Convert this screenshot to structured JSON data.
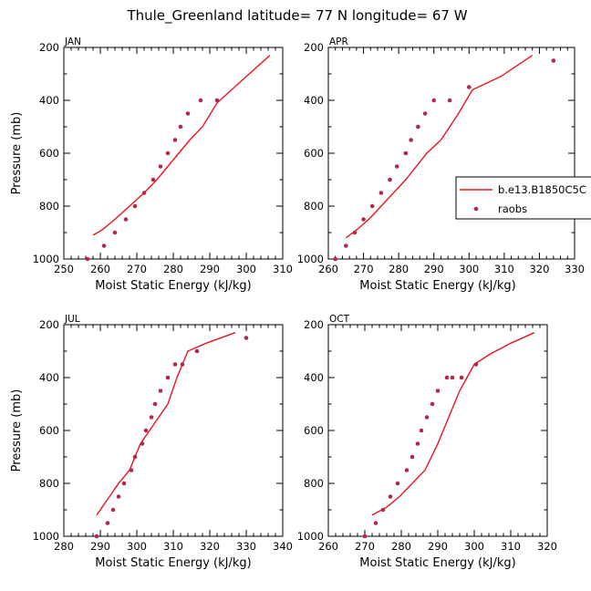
{
  "title": "Thule_Greenland   latitude= 77 N longitude= 67 W",
  "colors": {
    "model": "#e8141e",
    "obs": "#b02a4a",
    "axis": "#000000"
  },
  "legend": {
    "placement": "right",
    "items": [
      "b.e13.B1850C5C",
      "raobs"
    ]
  },
  "chart_data": [
    {
      "type": "line",
      "panel": "JAN",
      "xlabel": "Moist Static Energy (kJ/kg)",
      "ylabel": "Pressure (mb)",
      "xlim": [
        250,
        310
      ],
      "ylim": [
        1000,
        200
      ],
      "reversed_y": true,
      "xticks": [
        250,
        260,
        270,
        280,
        290,
        300,
        310
      ],
      "yticks": [
        200,
        400,
        600,
        800,
        1000
      ],
      "series": [
        {
          "name": "b.e13.B1850C5C",
          "kind": "line",
          "x": [
            258,
            260.5,
            264,
            268,
            272,
            275.5,
            278.5,
            281.5,
            284.5,
            288,
            292,
            296,
            300,
            306.5
          ],
          "y": [
            910,
            890,
            850,
            800,
            750,
            700,
            650,
            600,
            550,
            500,
            410,
            360,
            310,
            230
          ]
        },
        {
          "name": "raobs",
          "kind": "scatter",
          "x": [
            256.5,
            261,
            264,
            267,
            269.5,
            272,
            274.5,
            276.5,
            278.5,
            280.5,
            282,
            284,
            287.5,
            292
          ],
          "y": [
            1000,
            950,
            900,
            850,
            800,
            750,
            700,
            650,
            600,
            550,
            500,
            450,
            400,
            400
          ]
        }
      ]
    },
    {
      "type": "line",
      "panel": "APR",
      "xlabel": "Moist Static Energy (kJ/kg)",
      "ylabel": "",
      "xlim": [
        260,
        330
      ],
      "ylim": [
        1000,
        200
      ],
      "reversed_y": true,
      "xticks": [
        260,
        270,
        280,
        290,
        300,
        310,
        320,
        330
      ],
      "yticks": [
        200,
        400,
        600,
        800,
        1000
      ],
      "series": [
        {
          "name": "b.e13.B1850C5C",
          "kind": "line",
          "x": [
            265,
            268,
            271.5,
            275,
            278.5,
            282,
            285,
            288,
            292,
            297,
            301,
            309,
            318
          ],
          "y": [
            920,
            890,
            850,
            800,
            750,
            700,
            650,
            600,
            550,
            450,
            360,
            310,
            230
          ]
        },
        {
          "name": "raobs",
          "kind": "scatter",
          "x": [
            262,
            265,
            267.5,
            270,
            272.5,
            275,
            277.5,
            279.5,
            282,
            283.5,
            285.5,
            287.5,
            290,
            294.5,
            300,
            324
          ],
          "y": [
            1000,
            950,
            900,
            850,
            800,
            750,
            700,
            650,
            600,
            550,
            500,
            450,
            400,
            400,
            350,
            250
          ]
        }
      ]
    },
    {
      "type": "line",
      "panel": "JUL",
      "xlabel": "Moist Static Energy (kJ/kg)",
      "ylabel": "Pressure (mb)",
      "xlim": [
        280,
        340
      ],
      "ylim": [
        1000,
        200
      ],
      "reversed_y": true,
      "xticks": [
        280,
        290,
        300,
        310,
        320,
        330,
        340
      ],
      "yticks": [
        200,
        400,
        600,
        800,
        1000
      ],
      "series": [
        {
          "name": "b.e13.B1850C5C",
          "kind": "line",
          "x": [
            289,
            292,
            295,
            298,
            301,
            303.5,
            306,
            308.5,
            311,
            314,
            319,
            327
          ],
          "y": [
            920,
            860,
            800,
            750,
            650,
            600,
            550,
            500,
            400,
            300,
            270,
            230
          ]
        },
        {
          "name": "raobs",
          "kind": "scatter",
          "x": [
            289,
            292,
            293.5,
            295,
            296.5,
            298.5,
            299.5,
            301.5,
            302.5,
            304,
            305,
            306.5,
            308.5,
            310.5,
            312.5,
            316.5,
            330
          ],
          "y": [
            1000,
            950,
            900,
            850,
            800,
            750,
            700,
            650,
            600,
            550,
            500,
            450,
            400,
            350,
            350,
            300,
            250
          ]
        }
      ]
    },
    {
      "type": "line",
      "panel": "OCT",
      "xlabel": "Moist Static Energy (kJ/kg)",
      "ylabel": "",
      "xlim": [
        260,
        320
      ],
      "ylim": [
        1000,
        200
      ],
      "reversed_y": true,
      "xticks": [
        260,
        270,
        280,
        290,
        300,
        310,
        320
      ],
      "yticks": [
        200,
        400,
        600,
        800,
        1000
      ],
      "series": [
        {
          "name": "b.e13.B1850C5C",
          "kind": "line",
          "x": [
            272,
            276,
            279.5,
            283,
            286.5,
            290,
            293,
            296,
            300,
            304.5,
            310,
            316.5
          ],
          "y": [
            920,
            890,
            850,
            800,
            750,
            650,
            550,
            450,
            350,
            310,
            270,
            230
          ]
        },
        {
          "name": "raobs",
          "kind": "scatter",
          "x": [
            270,
            273,
            275,
            277,
            279,
            281.5,
            283,
            284.5,
            285.5,
            287,
            288.5,
            290,
            292.5,
            294,
            296.5,
            300.5
          ],
          "y": [
            1000,
            950,
            900,
            850,
            800,
            750,
            700,
            650,
            600,
            550,
            500,
            450,
            400,
            400,
            400,
            350
          ]
        }
      ]
    }
  ]
}
